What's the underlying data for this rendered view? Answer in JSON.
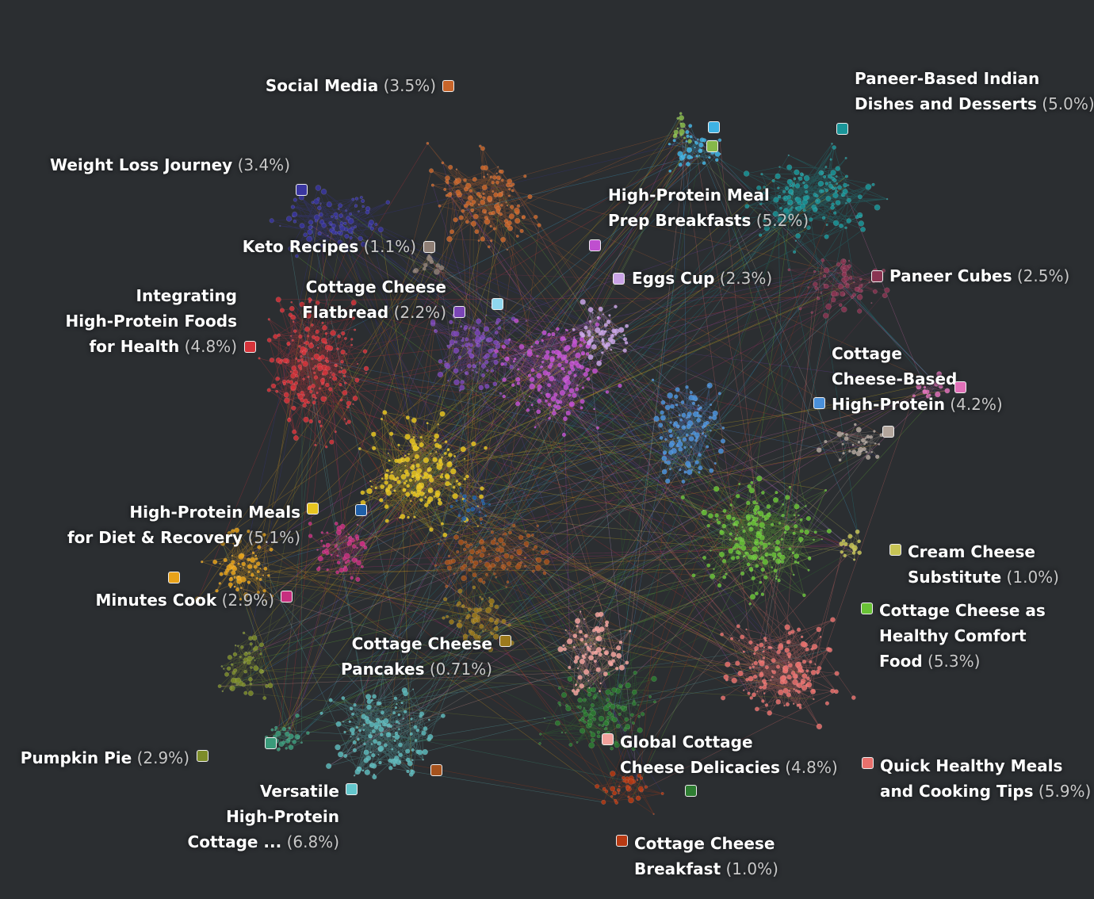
{
  "clusters": [
    {
      "name": "Social Media",
      "lines": [
        "Social Media"
      ],
      "pct": "(3.5%)",
      "color": "#c8652a"
    },
    {
      "name": "Weight Loss Journey",
      "lines": [
        "Weight Loss Journey"
      ],
      "pct": "(3.4%)",
      "color": "#3a36a0"
    },
    {
      "name": "Keto Recipes",
      "lines": [
        "Keto Recipes"
      ],
      "pct": "(1.1%)",
      "color": "#8f7f75"
    },
    {
      "name": "Integrating High-Protein Foods for Health",
      "lines": [
        "Integrating",
        "High-Protein Foods",
        "for Health"
      ],
      "pct": "(4.8%)",
      "color": "#d6343b"
    },
    {
      "name": "Cottage Cheese Flatbread",
      "lines": [
        "Cottage Cheese",
        "Flatbread"
      ],
      "pct": "(2.2%)",
      "color": "#7a45b5"
    },
    {
      "name": "High-Protein Meal Prep Breakfasts",
      "lines": [
        "High-Protein Meal",
        "Prep Breakfasts"
      ],
      "pct": "(5.2%)",
      "color": "#bf4fcf"
    },
    {
      "name": "Eggs Cup",
      "lines": [
        "Eggs Cup"
      ],
      "pct": "(2.3%)",
      "color": "#c9a3e6"
    },
    {
      "name": "Paneer-Based Indian Dishes and Desserts",
      "lines": [
        "Paneer-Based Indian",
        "Dishes and Desserts"
      ],
      "pct": "(5.0%)",
      "color": "#1a9599"
    },
    {
      "name": "Paneer Cubes",
      "lines": [
        "Paneer Cubes"
      ],
      "pct": "(2.5%)",
      "color": "#8a3552"
    },
    {
      "name": "Cottage Cheese-Based High-Protein",
      "lines": [
        "Cottage",
        "Cheese-Based",
        "High-Protein"
      ],
      "pct": "(4.2%)",
      "color": "#4a90d9"
    },
    {
      "name": "High-Protein Meals for Diet & Recovery",
      "lines": [
        "High-Protein Meals",
        "for Diet & Recovery"
      ],
      "pct": "(5.1%)",
      "color": "#e6c41f"
    },
    {
      "name": "Minutes Cook",
      "lines": [
        "Minutes Cook"
      ],
      "pct": "(2.9%)",
      "color": "#c62f7f"
    },
    {
      "name": "Cream Cheese Substitute",
      "lines": [
        "Cream Cheese",
        "Substitute"
      ],
      "pct": "(1.0%)",
      "color": "#c7c455"
    },
    {
      "name": "Cottage Cheese as Healthy Comfort Food",
      "lines": [
        "Cottage Cheese as",
        "Healthy Comfort",
        "Food"
      ],
      "pct": "(5.3%)",
      "color": "#69c236"
    },
    {
      "name": "Cottage Cheese Pancakes",
      "lines": [
        "Cottage Cheese",
        "Pancakes"
      ],
      "pct": "(0.71%)",
      "color": "#9c7a1d"
    },
    {
      "name": "Pumpkin Pie",
      "lines": [
        "Pumpkin Pie"
      ],
      "pct": "(2.9%)",
      "color": "#7d8c2a"
    },
    {
      "name": "Versatile High-Protein Cottage ...",
      "lines": [
        "Versatile",
        "High-Protein",
        "Cottage ..."
      ],
      "pct": "(6.8%)",
      "color": "#5bb6b9"
    },
    {
      "name": "Global Cottage Cheese Delicacies",
      "lines": [
        "Global Cottage",
        "Cheese Delicacies"
      ],
      "pct": "(4.8%)",
      "color": "#2e7d32"
    },
    {
      "name": "Quick Healthy Meals and Cooking Tips",
      "lines": [
        "Quick Healthy Meals",
        "and Cooking Tips"
      ],
      "pct": "(5.9%)",
      "color": "#e8706c"
    },
    {
      "name": "Cottage Cheese Breakfast",
      "lines": [
        "Cottage Cheese",
        "Breakfast"
      ],
      "pct": "(1.0%)",
      "color": "#b83a13"
    }
  ],
  "extra_swatches": [
    {
      "id": "sky",
      "color": "#3eb2e3"
    },
    {
      "id": "lime",
      "color": "#86b84a"
    },
    {
      "id": "lightcyan",
      "color": "#8fd8ef"
    },
    {
      "id": "pink",
      "color": "#e070b8"
    },
    {
      "id": "taupe",
      "color": "#b3a69c"
    },
    {
      "id": "navy",
      "color": "#1f5fa8"
    },
    {
      "id": "orange",
      "color": "#e8a21a"
    },
    {
      "id": "teal",
      "color": "#3a9a7a"
    },
    {
      "id": "rust",
      "color": "#a5521d"
    },
    {
      "id": "cyan2",
      "color": "#63c6cc"
    },
    {
      "id": "salmon",
      "color": "#f2a29c"
    }
  ]
}
